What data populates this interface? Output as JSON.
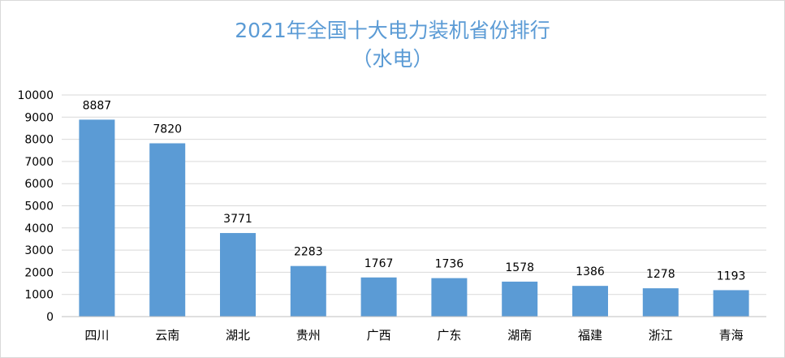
{
  "chart_data": {
    "type": "bar",
    "title": "2021年全国十大电力装机省份排行",
    "subtitle": "（水电）",
    "categories": [
      "四川",
      "云南",
      "湖北",
      "贵州",
      "广西",
      "广东",
      "湖南",
      "福建",
      "浙江",
      "青海"
    ],
    "values": [
      8887,
      7820,
      3771,
      2283,
      1767,
      1736,
      1578,
      1386,
      1278,
      1193
    ],
    "ylim": [
      0,
      10000
    ],
    "yticks": [
      0,
      1000,
      2000,
      3000,
      4000,
      5000,
      6000,
      7000,
      8000,
      9000,
      10000
    ],
    "grid": true,
    "legend": "none",
    "bar_color": "#5b9bd5",
    "grid_color": "#d9d9d9"
  }
}
